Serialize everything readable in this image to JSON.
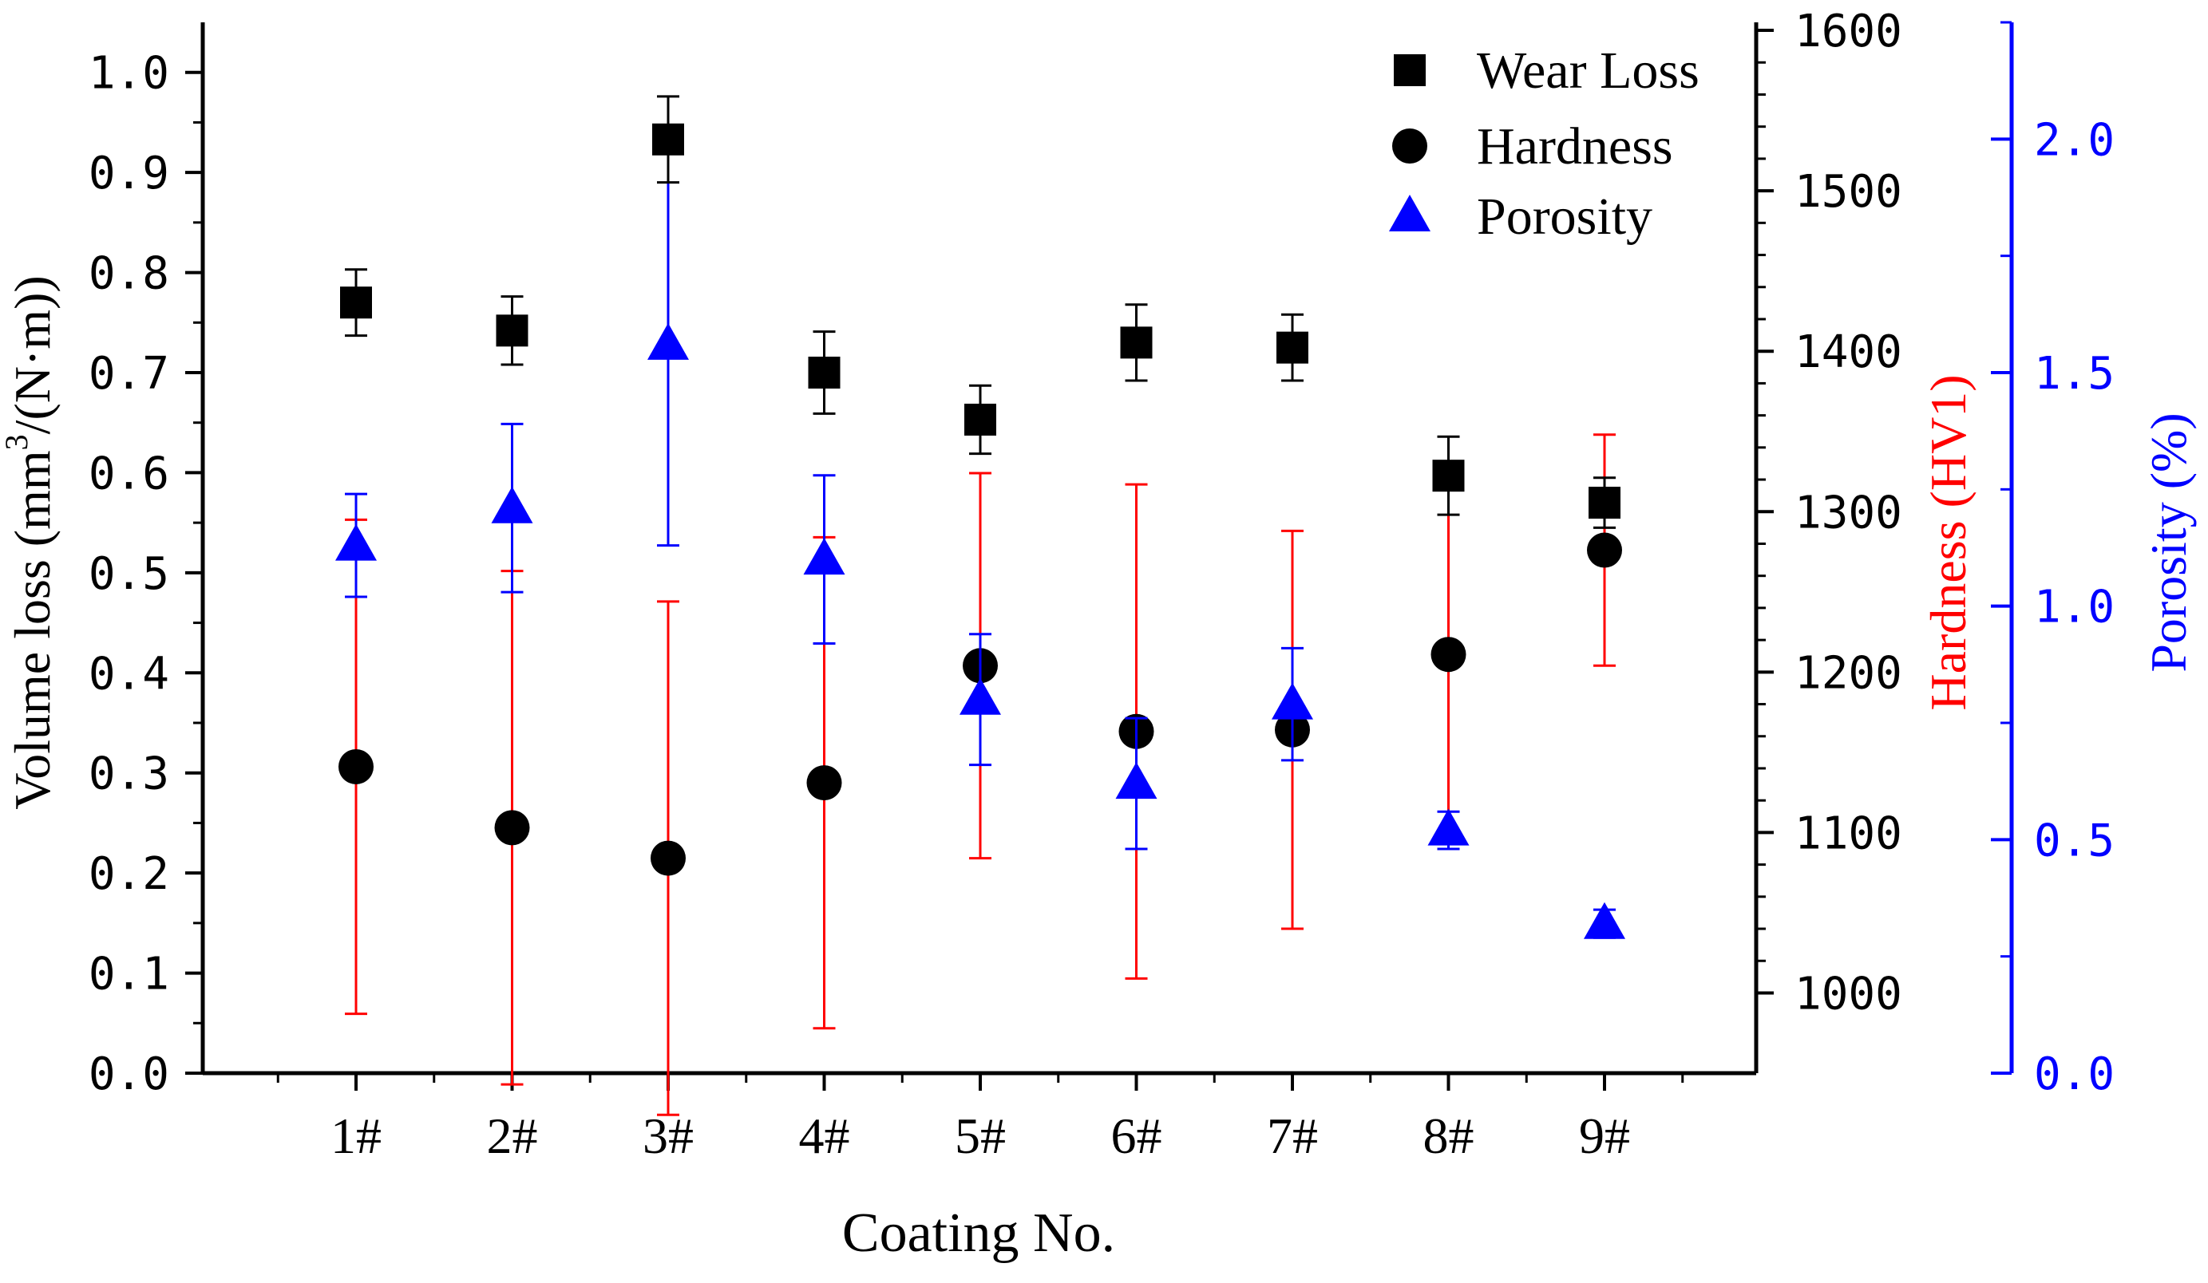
{
  "chart_data": {
    "type": "scatter",
    "xlabel": "Coating No.",
    "categories": [
      "1#",
      "2#",
      "3#",
      "4#",
      "5#",
      "6#",
      "7#",
      "8#",
      "9#"
    ],
    "axes": {
      "left": {
        "label_prefix": "Volume loss (mm",
        "label_sup": "3",
        "label_suffix": "/(N·m))",
        "ylim": [
          0.0,
          1.05
        ],
        "ticks": [
          "0.0",
          "0.1",
          "0.2",
          "0.3",
          "0.4",
          "0.5",
          "0.6",
          "0.7",
          "0.8",
          "0.9",
          "1.0"
        ],
        "color": "#000000"
      },
      "right_hardness": {
        "label": "Hardness (HV1)",
        "ylim": [
          950,
          1605
        ],
        "ticks": [
          "1000",
          "1100",
          "1200",
          "1300",
          "1400",
          "1500",
          "1600"
        ],
        "color": "#ff0000"
      },
      "right_porosity": {
        "label": "Porosity (%)",
        "ylim": [
          0.0,
          2.25
        ],
        "ticks": [
          "0.0",
          "0.5",
          "1.0",
          "1.5",
          "2.0"
        ],
        "color": "#0000ff"
      }
    },
    "legend": {
      "position": "top-right",
      "entries": [
        "Wear Loss",
        "Hardness",
        "Porosity"
      ]
    },
    "series": [
      {
        "name": "Wear Loss",
        "axis": "left",
        "marker": "square",
        "marker_color": "#000000",
        "errorbar_color": "#000000",
        "values": [
          0.77,
          0.742,
          0.933,
          0.7,
          0.653,
          0.73,
          0.725,
          0.597,
          0.57
        ],
        "errors": [
          0.033,
          0.034,
          0.043,
          0.041,
          0.034,
          0.038,
          0.033,
          0.039,
          0.025
        ]
      },
      {
        "name": "Hardness",
        "axis": "right_hardness",
        "marker": "circle",
        "marker_color": "#000000",
        "errorbar_color": "#ff0000",
        "values": [
          1141,
          1103,
          1084,
          1131,
          1204,
          1163,
          1164,
          1211,
          1276
        ],
        "errors": [
          154,
          160,
          160,
          153,
          120,
          154,
          124,
          111,
          72
        ]
      },
      {
        "name": "Porosity",
        "axis": "right_porosity",
        "marker": "triangle",
        "marker_color": "#0000ff",
        "errorbar_color": "#0000ff",
        "values": [
          1.13,
          1.21,
          1.56,
          1.1,
          0.8,
          0.62,
          0.79,
          0.52,
          0.32
        ],
        "errors": [
          0.11,
          0.18,
          0.43,
          0.18,
          0.14,
          0.14,
          0.12,
          0.04,
          0.03
        ]
      }
    ]
  }
}
